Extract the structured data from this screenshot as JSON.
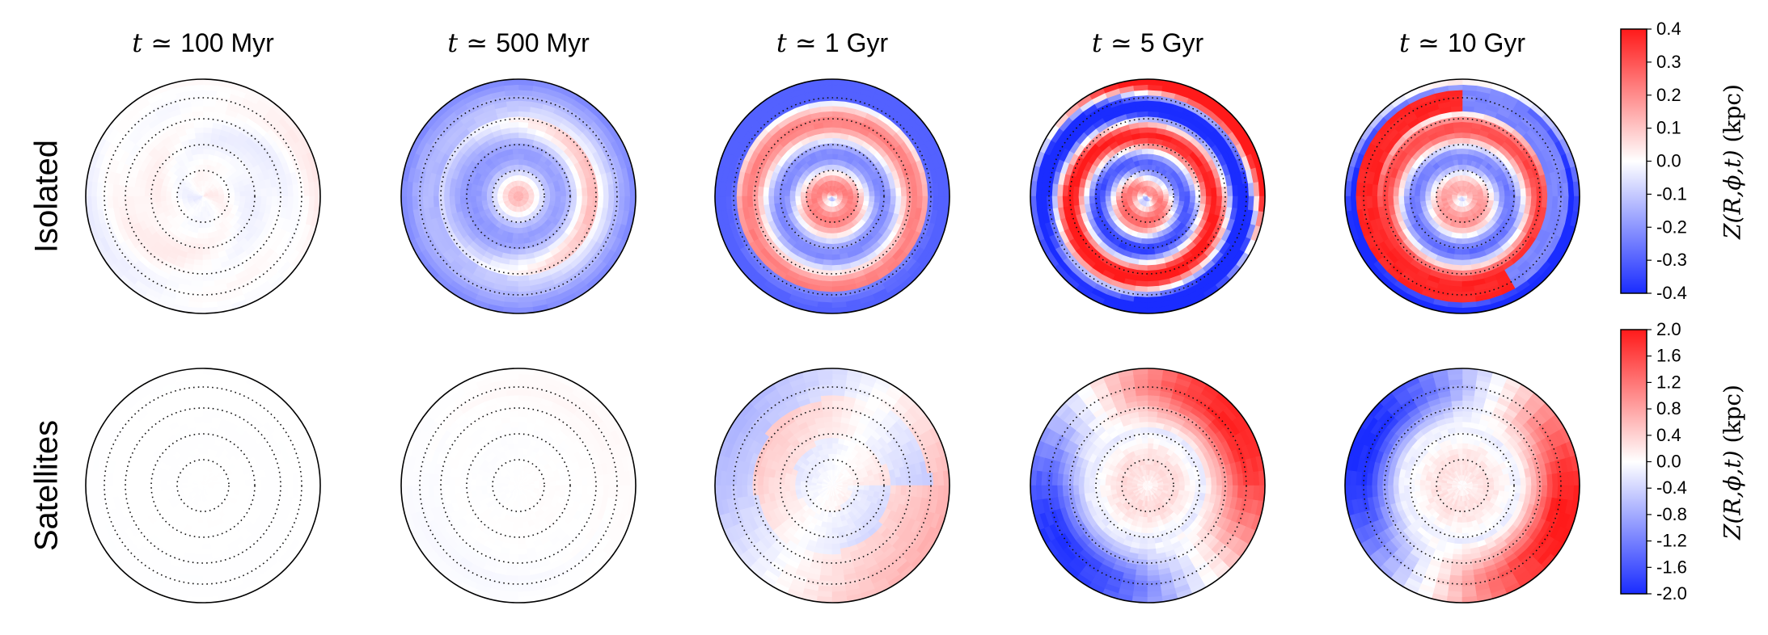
{
  "chart_data": {
    "type": "heatmap",
    "projection": "polar face-on disc maps",
    "columns": [
      {
        "t_symbol": "t",
        "approx": "≃",
        "time": "100 Myr"
      },
      {
        "t_symbol": "t",
        "approx": "≃",
        "time": "500 Myr"
      },
      {
        "t_symbol": "t",
        "approx": "≃",
        "time": "1 Gyr"
      },
      {
        "t_symbol": "t",
        "approx": "≃",
        "time": "5 Gyr"
      },
      {
        "t_symbol": "t",
        "approx": "≃",
        "time": "10 Gyr"
      }
    ],
    "rows": [
      {
        "label": "Isolated",
        "colorbar": {
          "label_prefix": "Z",
          "label_args": "(R,ϕ,t)",
          "label_units": "(kpc)",
          "range": [
            -0.4,
            0.4
          ],
          "ticks": [
            "0.4",
            "0.3",
            "0.2",
            "0.1",
            "0.0",
            "-0.1",
            "-0.2",
            "-0.3",
            "-0.4"
          ]
        },
        "approx_peak_amplitude_kpc": [
          0.1,
          0.25,
          0.3,
          0.4,
          0.4
        ]
      },
      {
        "label": "Satellites",
        "colorbar": {
          "label_prefix": "Z",
          "label_args": "(R,ϕ,t)",
          "label_units": "(kpc)",
          "range": [
            -2.0,
            2.0
          ],
          "ticks": [
            "2.0",
            "1.6",
            "1.2",
            "0.8",
            "0.4",
            "0.0",
            "-0.4",
            "-0.8",
            "-1.2",
            "-1.6",
            "-2.0"
          ]
        },
        "approx_peak_amplitude_kpc": [
          0.1,
          0.3,
          1.2,
          2.0,
          2.0
        ]
      }
    ],
    "colormap": {
      "low": "#1a2cff",
      "mid": "#ffffff",
      "high": "#ff1a1a"
    },
    "overlays": "dotted concentric rings",
    "grid": false,
    "legend": "colorbars at right of each row"
  }
}
